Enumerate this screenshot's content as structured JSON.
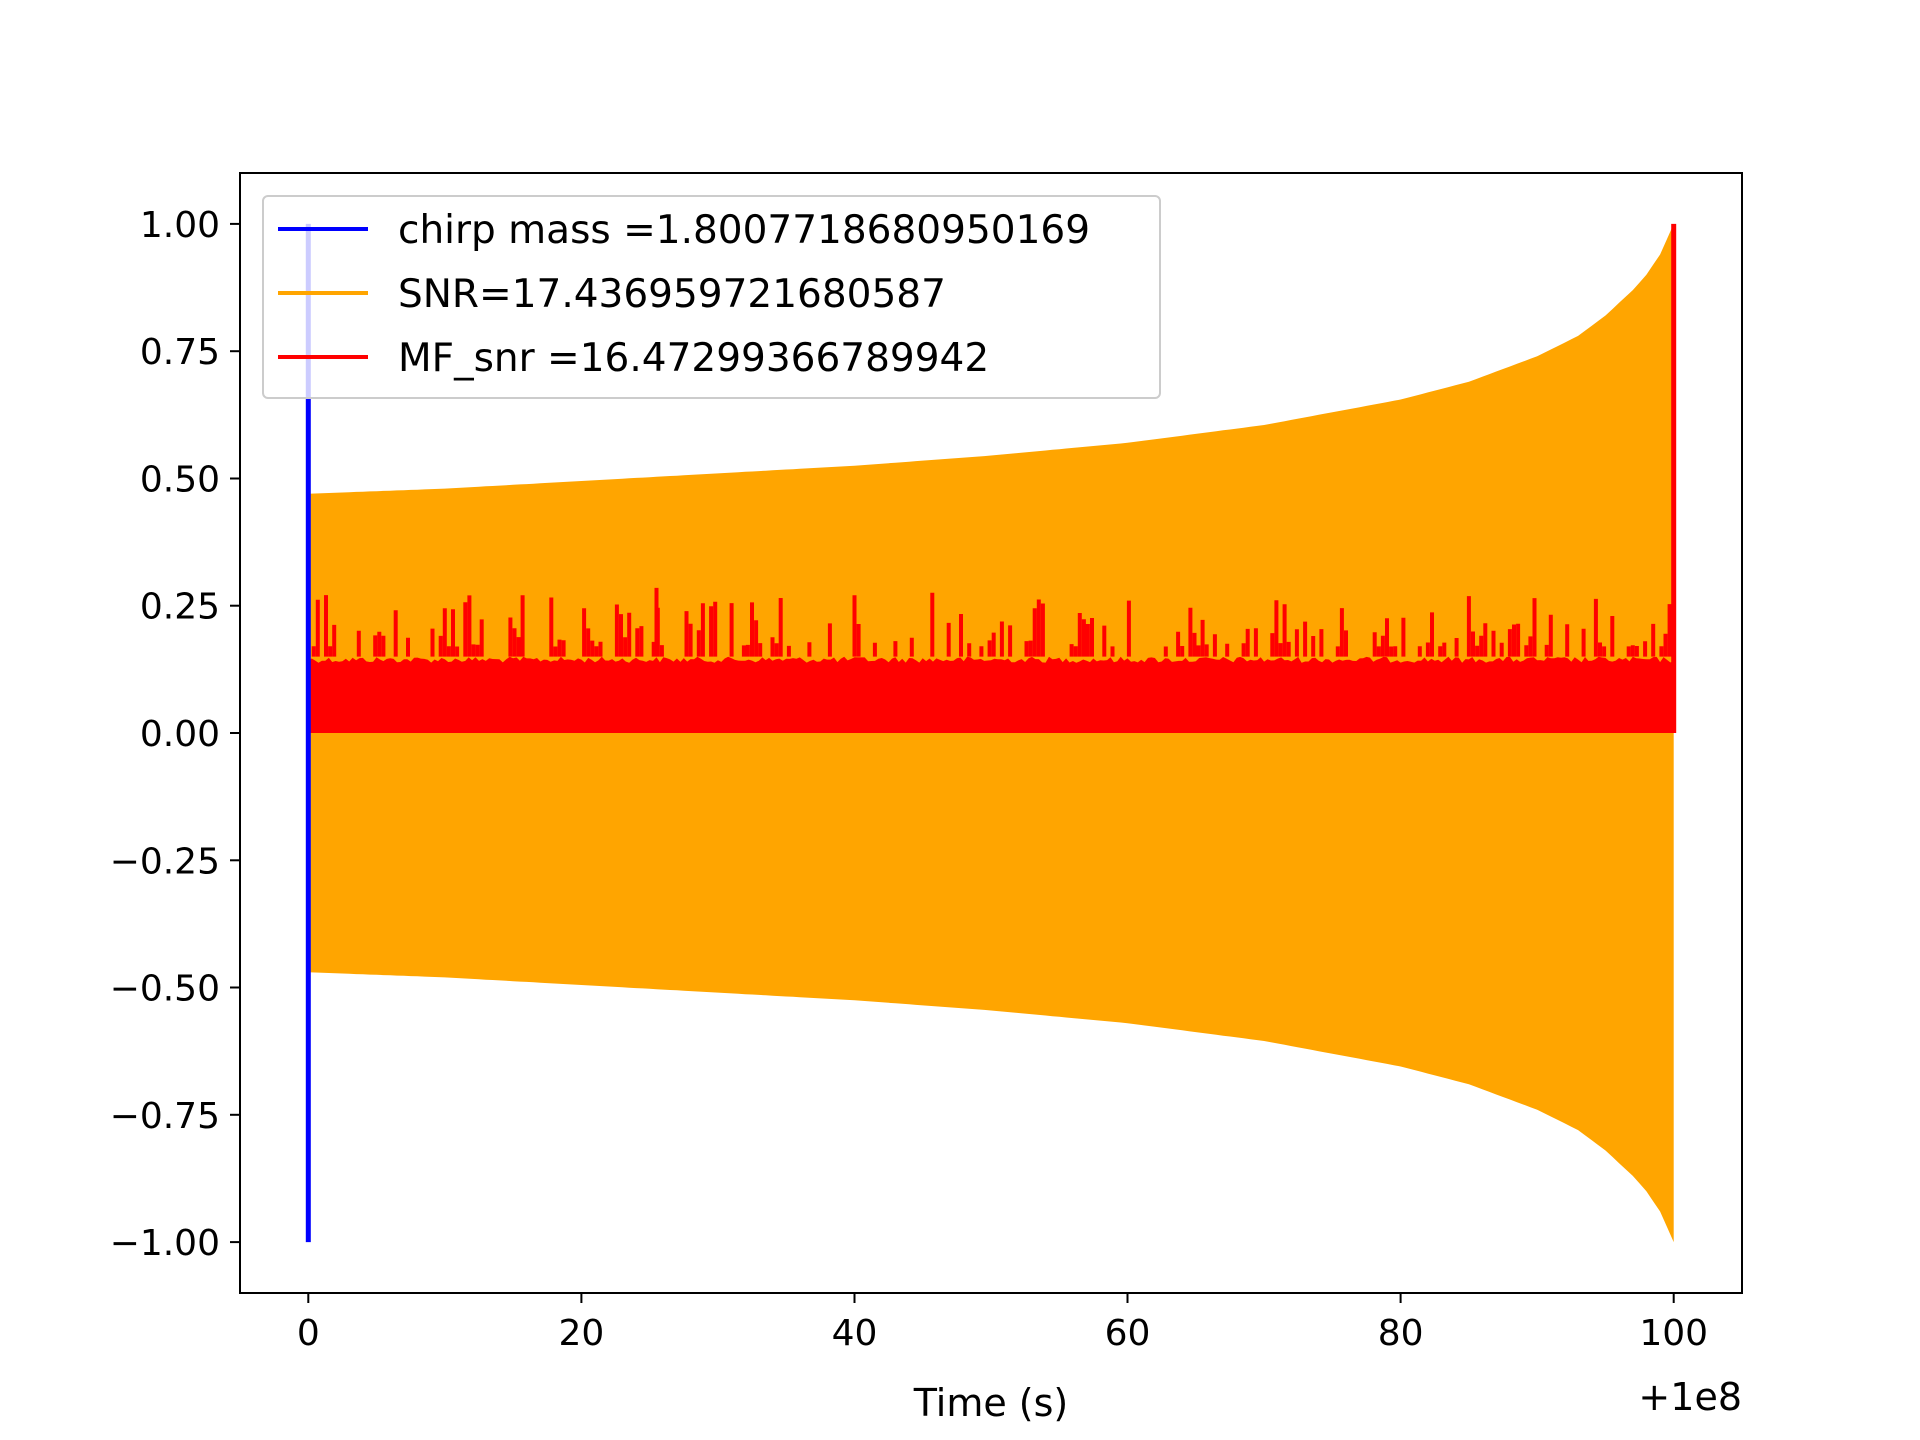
{
  "chart_data": {
    "type": "line",
    "title": "",
    "xlabel": "Time (s)",
    "ylabel": "",
    "x_offset_label": "+1e8",
    "xlim": [
      -5,
      105
    ],
    "ylim": [
      -1.1,
      1.1
    ],
    "xticks": [
      0,
      20,
      40,
      60,
      80,
      100
    ],
    "xtick_labels": [
      "0",
      "20",
      "40",
      "60",
      "80",
      "100"
    ],
    "yticks": [
      1.0,
      0.75,
      0.5,
      0.25,
      0.0,
      -0.25,
      -0.5,
      -0.75,
      -1.0
    ],
    "ytick_labels": [
      "1.00",
      "0.75",
      "0.50",
      "0.25",
      "0.00",
      "−0.25",
      "−0.50",
      "−0.75",
      "−1.00"
    ],
    "grid": false,
    "legend_position": "top-left",
    "series": [
      {
        "name": "chirp mass =1.8007718680950169",
        "color": "#0000ff",
        "style": "vertical spike at start",
        "x": [
          0,
          0
        ],
        "y": [
          -1.0,
          1.0
        ]
      },
      {
        "name": "SNR=17.436959721680587",
        "color": "#ffa500",
        "style": "oscillating chirp envelope",
        "x": [
          0,
          10,
          20,
          30,
          40,
          50,
          60,
          70,
          80,
          85,
          90,
          93,
          95,
          97,
          98,
          99,
          100
        ],
        "y_upper": [
          0.47,
          0.48,
          0.495,
          0.51,
          0.525,
          0.545,
          0.57,
          0.605,
          0.655,
          0.69,
          0.74,
          0.78,
          0.82,
          0.87,
          0.9,
          0.94,
          1.0
        ],
        "y_lower": [
          -0.47,
          -0.48,
          -0.495,
          -0.51,
          -0.525,
          -0.545,
          -0.57,
          -0.605,
          -0.655,
          -0.69,
          -0.74,
          -0.78,
          -0.82,
          -0.87,
          -0.9,
          -0.94,
          -1.0
        ]
      },
      {
        "name": "MF_snr =16.47299366789942",
        "color": "#ff0000",
        "style": "noisy matched-filter output with peak at end",
        "x_range": [
          0,
          100
        ],
        "baseline_max": 0.15,
        "spike_range": [
          0.17,
          0.28
        ],
        "peak": {
          "x": 100,
          "y": 1.0
        }
      }
    ]
  }
}
